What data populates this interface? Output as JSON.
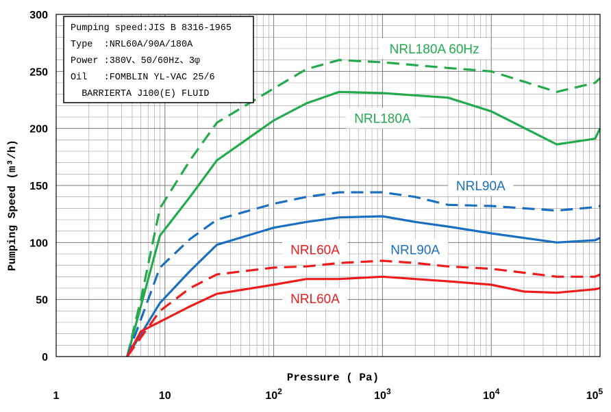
{
  "chart_data": {
    "type": "line",
    "xlabel": "Pressure ( Pa)",
    "ylabel": "Pumping Speed (m³/h)",
    "xscale": "log",
    "xlim": [
      1,
      100000
    ],
    "ylim": [
      0,
      300
    ],
    "grid": true,
    "y_ticks": [
      {
        "value": 0,
        "label": "0"
      },
      {
        "value": 50,
        "label": "50"
      },
      {
        "value": 100,
        "label": "100"
      },
      {
        "value": 150,
        "label": "150"
      },
      {
        "value": 200,
        "label": "200"
      },
      {
        "value": 250,
        "label": "250"
      },
      {
        "value": 300,
        "label": "300"
      }
    ],
    "x_ticks": [
      {
        "value": 1,
        "base": "1",
        "exp": ""
      },
      {
        "value": 10,
        "base": "10",
        "exp": ""
      },
      {
        "value": 100,
        "base": "10",
        "exp": "2"
      },
      {
        "value": 1000,
        "base": "10",
        "exp": "3"
      },
      {
        "value": 10000,
        "base": "10",
        "exp": "4"
      },
      {
        "value": 100000,
        "base": "10",
        "exp": "5"
      }
    ],
    "info_box": [
      "Pumping speed:JIS B 8316-1965",
      "Type  :NRL60A/90A/180A",
      "Power :380V、50/60Hz、3φ",
      "Oil   :FOMBLIN YL-VAC 25/6",
      "  BARRIERTA J100(E) FLUID"
    ],
    "series": [
      {
        "name": "NRL180A 60Hz",
        "color": "#22aa4c",
        "dash": true,
        "points": [
          [
            4.5,
            0
          ],
          [
            6,
            50
          ],
          [
            9,
            130
          ],
          [
            17,
            172
          ],
          [
            30,
            205
          ],
          [
            100,
            235
          ],
          [
            200,
            252
          ],
          [
            400,
            260
          ],
          [
            1000,
            258
          ],
          [
            4000,
            253
          ],
          [
            10000,
            250
          ],
          [
            40000,
            232
          ],
          [
            90000,
            240
          ],
          [
            100000,
            244
          ]
        ]
      },
      {
        "name": "NRL180A",
        "color": "#22aa4c",
        "dash": false,
        "points": [
          [
            4.5,
            0
          ],
          [
            9,
            106
          ],
          [
            17,
            140
          ],
          [
            30,
            172
          ],
          [
            100,
            207
          ],
          [
            200,
            222
          ],
          [
            400,
            232
          ],
          [
            1000,
            231
          ],
          [
            4000,
            227
          ],
          [
            10000,
            215
          ],
          [
            40000,
            186
          ],
          [
            90000,
            191
          ],
          [
            100000,
            200
          ]
        ]
      },
      {
        "name": "NRL90A",
        "color": "#1b6fc0",
        "dash": true,
        "points": [
          [
            4.5,
            0
          ],
          [
            9,
            78
          ],
          [
            17,
            103
          ],
          [
            30,
            120
          ],
          [
            100,
            134
          ],
          [
            200,
            140
          ],
          [
            400,
            144
          ],
          [
            1000,
            144
          ],
          [
            2000,
            140
          ],
          [
            4000,
            133
          ],
          [
            10000,
            132
          ],
          [
            40000,
            128
          ],
          [
            90000,
            131
          ],
          [
            100000,
            132
          ]
        ]
      },
      {
        "name": "NRL90A",
        "color": "#1b6fc0",
        "dash": false,
        "points": [
          [
            4.5,
            0
          ],
          [
            9,
            47
          ],
          [
            17,
            75
          ],
          [
            30,
            98
          ],
          [
            100,
            113
          ],
          [
            200,
            118
          ],
          [
            400,
            122
          ],
          [
            1000,
            123
          ],
          [
            2000,
            118
          ],
          [
            4000,
            114
          ],
          [
            10000,
            108
          ],
          [
            40000,
            100
          ],
          [
            90000,
            102
          ],
          [
            100000,
            104
          ]
        ]
      },
      {
        "name": "NRL60A",
        "color": "#ee1c1c",
        "dash": true,
        "points": [
          [
            4.5,
            0
          ],
          [
            9,
            40
          ],
          [
            17,
            60
          ],
          [
            30,
            72
          ],
          [
            100,
            78
          ],
          [
            200,
            79
          ],
          [
            400,
            82
          ],
          [
            1000,
            84
          ],
          [
            2000,
            82
          ],
          [
            4000,
            79
          ],
          [
            10000,
            77
          ],
          [
            40000,
            70
          ],
          [
            90000,
            70
          ],
          [
            100000,
            72
          ]
        ]
      },
      {
        "name": "NRL60A",
        "color": "#ee1c1c",
        "dash": false,
        "points": [
          [
            4.5,
            0
          ],
          [
            6,
            22
          ],
          [
            17,
            44
          ],
          [
            30,
            55
          ],
          [
            100,
            63
          ],
          [
            200,
            68
          ],
          [
            400,
            68
          ],
          [
            1000,
            70
          ],
          [
            2000,
            68
          ],
          [
            4000,
            66
          ],
          [
            10000,
            63
          ],
          [
            20000,
            57
          ],
          [
            40000,
            56
          ],
          [
            90000,
            59
          ],
          [
            100000,
            60
          ]
        ]
      }
    ],
    "annotations": [
      {
        "text": "NRL180A 60Hz",
        "color": "#22aa4c",
        "x": 3000,
        "y": 270
      },
      {
        "text": "NRL180A",
        "color": "#22aa4c",
        "x": 1000,
        "y": 209
      },
      {
        "text": "NRL90A",
        "color": "#1b6fc0",
        "x": 8000,
        "y": 150
      },
      {
        "text": "NRL90A",
        "color": "#1b6fc0",
        "x": 2000,
        "y": 94
      },
      {
        "text": "NRL60A",
        "color": "#ee1c1c",
        "x": 240,
        "y": 94
      },
      {
        "text": "NRL60A",
        "color": "#ee1c1c",
        "x": 240,
        "y": 51
      }
    ]
  }
}
